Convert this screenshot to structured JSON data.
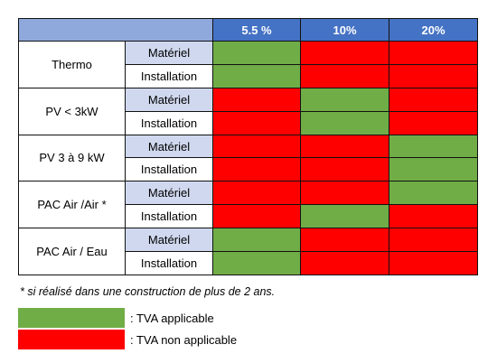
{
  "table": {
    "rates": [
      "5.5 %",
      "10%",
      "20%"
    ],
    "row_labels": [
      "Matériel",
      "Installation"
    ],
    "groups": [
      {
        "label": "Thermo",
        "rows": [
          {
            "label": "Matériel",
            "cells": [
              "green",
              "red",
              "red"
            ]
          },
          {
            "label": "Installation",
            "cells": [
              "green",
              "red",
              "red"
            ]
          }
        ]
      },
      {
        "label": "PV < 3kW",
        "rows": [
          {
            "label": "Matériel",
            "cells": [
              "red",
              "green",
              "red"
            ]
          },
          {
            "label": "Installation",
            "cells": [
              "red",
              "green",
              "red"
            ]
          }
        ]
      },
      {
        "label": "PV 3 à 9 kW",
        "rows": [
          {
            "label": "Matériel",
            "cells": [
              "red",
              "red",
              "green"
            ]
          },
          {
            "label": "Installation",
            "cells": [
              "red",
              "red",
              "green"
            ]
          }
        ]
      },
      {
        "label": "PAC Air /Air *",
        "rows": [
          {
            "label": "Matériel",
            "cells": [
              "red",
              "red",
              "green"
            ]
          },
          {
            "label": "Installation",
            "cells": [
              "red",
              "green",
              "red"
            ]
          }
        ]
      },
      {
        "label": "PAC Air / Eau",
        "rows": [
          {
            "label": "Matériel",
            "cells": [
              "green",
              "red",
              "red"
            ]
          },
          {
            "label": "Installation",
            "cells": [
              "green",
              "red",
              "red"
            ]
          }
        ]
      }
    ]
  },
  "note": "* si réalisé dans une construction de plus de 2 ans.",
  "legend": {
    "applicable": ": TVA applicable",
    "non_applicable": ": TVA non applicable"
  },
  "colors": {
    "applicable": "#70ad47",
    "non_applicable": "#ff0000",
    "header": "#4472c4",
    "corner": "#8fa9dc",
    "materiel_bg": "#cfd8ee"
  }
}
